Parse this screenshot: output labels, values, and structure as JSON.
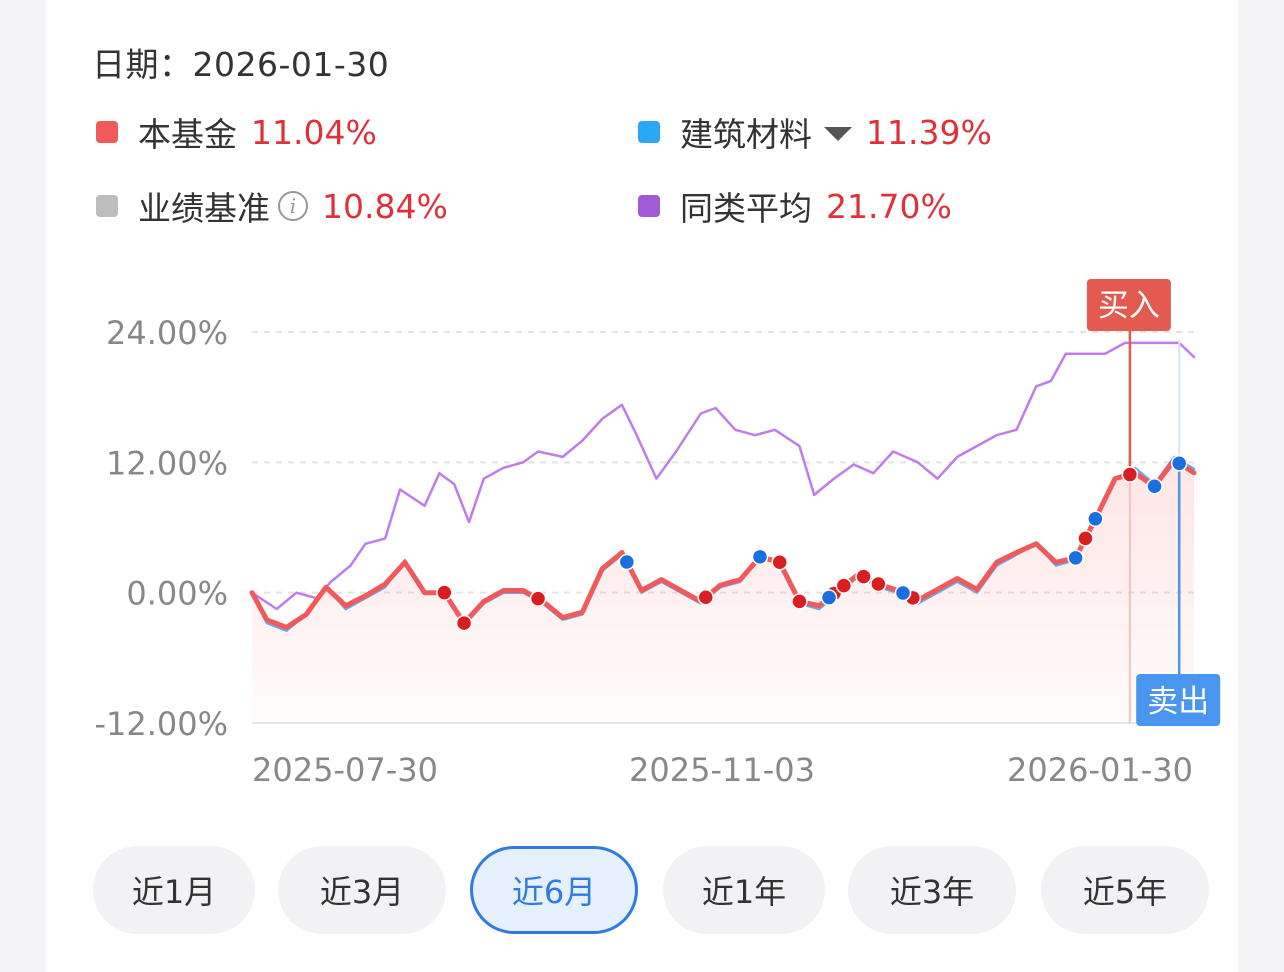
{
  "header": {
    "date_label": "日期：",
    "date_value": "2026-01-30"
  },
  "legend": [
    {
      "name": "本基金",
      "value": "11.04%",
      "color": "#f05a5a"
    },
    {
      "name": "建筑材料",
      "value": "11.39%",
      "color": "#2aa7f5",
      "has_dropdown": true
    },
    {
      "name": "业绩基准",
      "value": "10.84%",
      "color": "#bdbdbd",
      "has_info": true
    },
    {
      "name": "同类平均",
      "value": "21.70%",
      "color": "#a05cd6"
    }
  ],
  "chart_data": {
    "type": "line",
    "x_ticks": [
      "2025-07-30",
      "2025-11-03",
      "2026-01-30"
    ],
    "y_ticks": [
      "24.00%",
      "12.00%",
      "0.00%",
      "-12.00%"
    ],
    "ylim": [
      -12,
      24
    ],
    "grid": true,
    "x_range": [
      "2025-07-30",
      "2026-02-06"
    ],
    "series": [
      {
        "name": "同类平均",
        "color": "#c07de8",
        "points": [
          [
            "2025-07-30",
            0.0
          ],
          [
            "2025-08-04",
            -1.5
          ],
          [
            "2025-08-08",
            0.0
          ],
          [
            "2025-08-12",
            -0.5
          ],
          [
            "2025-08-15",
            1.0
          ],
          [
            "2025-08-19",
            2.5
          ],
          [
            "2025-08-22",
            4.5
          ],
          [
            "2025-08-26",
            5.0
          ],
          [
            "2025-08-29",
            9.5
          ],
          [
            "2025-09-03",
            8.0
          ],
          [
            "2025-09-06",
            11.0
          ],
          [
            "2025-09-09",
            10.0
          ],
          [
            "2025-09-12",
            6.5
          ],
          [
            "2025-09-15",
            10.5
          ],
          [
            "2025-09-19",
            11.5
          ],
          [
            "2025-09-23",
            12.0
          ],
          [
            "2025-09-26",
            13.0
          ],
          [
            "2025-10-01",
            12.5
          ],
          [
            "2025-10-05",
            14.0
          ],
          [
            "2025-10-09",
            16.0
          ],
          [
            "2025-10-13",
            17.3
          ],
          [
            "2025-10-16",
            14.5
          ],
          [
            "2025-10-20",
            10.5
          ],
          [
            "2025-10-24",
            13.0
          ],
          [
            "2025-10-29",
            16.5
          ],
          [
            "2025-11-01",
            17.0
          ],
          [
            "2025-11-05",
            15.0
          ],
          [
            "2025-11-09",
            14.5
          ],
          [
            "2025-11-13",
            15.0
          ],
          [
            "2025-11-18",
            13.5
          ],
          [
            "2025-11-21",
            9.0
          ],
          [
            "2025-11-25",
            10.5
          ],
          [
            "2025-11-29",
            11.8
          ],
          [
            "2025-12-03",
            11.0
          ],
          [
            "2025-12-07",
            13.0
          ],
          [
            "2025-12-12",
            12.0
          ],
          [
            "2025-12-16",
            10.5
          ],
          [
            "2025-12-20",
            12.5
          ],
          [
            "2025-12-24",
            13.5
          ],
          [
            "2025-12-28",
            14.5
          ],
          [
            "2026-01-01",
            15.0
          ],
          [
            "2026-01-05",
            19.0
          ],
          [
            "2026-01-08",
            19.5
          ],
          [
            "2026-01-11",
            22.0
          ],
          [
            "2026-01-15",
            22.0
          ],
          [
            "2026-01-19",
            22.0
          ],
          [
            "2026-01-23",
            23.0
          ],
          [
            "2026-01-27",
            23.0
          ],
          [
            "2026-01-31",
            23.0
          ],
          [
            "2026-02-03",
            23.0
          ],
          [
            "2026-02-06",
            21.7
          ]
        ]
      },
      {
        "name": "建筑材料",
        "color": "#6aa8e8",
        "points": [
          [
            "2025-07-30",
            0.0
          ],
          [
            "2025-08-02",
            -2.8
          ],
          [
            "2025-08-06",
            -3.5
          ],
          [
            "2025-08-10",
            -2.0
          ],
          [
            "2025-08-14",
            0.5
          ],
          [
            "2025-08-18",
            -1.5
          ],
          [
            "2025-08-22",
            -0.5
          ],
          [
            "2025-08-26",
            0.5
          ],
          [
            "2025-08-30",
            3.0
          ],
          [
            "2025-09-03",
            0.0
          ],
          [
            "2025-09-07",
            0.0
          ],
          [
            "2025-09-11",
            -3.0
          ],
          [
            "2025-09-15",
            -1.0
          ],
          [
            "2025-09-19",
            0.0
          ],
          [
            "2025-09-23",
            0.0
          ],
          [
            "2025-09-27",
            -1.0
          ],
          [
            "2025-10-01",
            -2.5
          ],
          [
            "2025-10-05",
            -2.0
          ],
          [
            "2025-10-09",
            2.0
          ],
          [
            "2025-10-13",
            3.5
          ],
          [
            "2025-10-17",
            0.0
          ],
          [
            "2025-10-21",
            1.0
          ],
          [
            "2025-10-25",
            0.0
          ],
          [
            "2025-10-29",
            -1.0
          ],
          [
            "2025-11-02",
            0.5
          ],
          [
            "2025-11-06",
            1.0
          ],
          [
            "2025-11-10",
            3.5
          ],
          [
            "2025-11-14",
            2.5
          ],
          [
            "2025-11-18",
            -1.0
          ],
          [
            "2025-11-22",
            -1.5
          ],
          [
            "2025-11-26",
            0.0
          ],
          [
            "2025-11-30",
            1.5
          ],
          [
            "2025-12-04",
            0.5
          ],
          [
            "2025-12-08",
            0.0
          ],
          [
            "2025-12-12",
            -1.0
          ],
          [
            "2025-12-16",
            0.0
          ],
          [
            "2025-12-20",
            1.0
          ],
          [
            "2025-12-24",
            0.0
          ],
          [
            "2025-12-28",
            2.5
          ],
          [
            "2026-01-01",
            3.5
          ],
          [
            "2026-01-05",
            4.5
          ],
          [
            "2026-01-09",
            2.5
          ],
          [
            "2026-01-13",
            3.0
          ],
          [
            "2026-01-17",
            6.5
          ],
          [
            "2026-01-21",
            10.5
          ],
          [
            "2026-01-25",
            11.5
          ],
          [
            "2026-01-29",
            10.0
          ],
          [
            "2026-02-02",
            12.5
          ],
          [
            "2026-02-06",
            11.39
          ]
        ]
      },
      {
        "name": "本基金",
        "color": "#f05a5a",
        "points": [
          [
            "2025-07-30",
            0.0
          ],
          [
            "2025-08-02",
            -2.5
          ],
          [
            "2025-08-06",
            -3.2
          ],
          [
            "2025-08-10",
            -2.0
          ],
          [
            "2025-08-14",
            0.5
          ],
          [
            "2025-08-18",
            -1.2
          ],
          [
            "2025-08-22",
            -0.3
          ],
          [
            "2025-08-26",
            0.8
          ],
          [
            "2025-08-30",
            2.8
          ],
          [
            "2025-09-03",
            0.0
          ],
          [
            "2025-09-07",
            0.0
          ],
          [
            "2025-09-11",
            -2.8
          ],
          [
            "2025-09-15",
            -0.8
          ],
          [
            "2025-09-19",
            0.2
          ],
          [
            "2025-09-23",
            0.2
          ],
          [
            "2025-09-27",
            -0.8
          ],
          [
            "2025-10-01",
            -2.3
          ],
          [
            "2025-10-05",
            -1.8
          ],
          [
            "2025-10-09",
            2.2
          ],
          [
            "2025-10-13",
            3.7
          ],
          [
            "2025-10-17",
            0.2
          ],
          [
            "2025-10-21",
            1.2
          ],
          [
            "2025-10-25",
            0.2
          ],
          [
            "2025-10-29",
            -0.8
          ],
          [
            "2025-11-02",
            0.7
          ],
          [
            "2025-11-06",
            1.2
          ],
          [
            "2025-11-10",
            3.3
          ],
          [
            "2025-11-14",
            2.8
          ],
          [
            "2025-11-18",
            -0.8
          ],
          [
            "2025-11-22",
            -1.2
          ],
          [
            "2025-11-26",
            0.3
          ],
          [
            "2025-11-30",
            1.7
          ],
          [
            "2025-12-04",
            0.8
          ],
          [
            "2025-12-08",
            0.2
          ],
          [
            "2025-12-12",
            -0.7
          ],
          [
            "2025-12-16",
            0.3
          ],
          [
            "2025-12-20",
            1.3
          ],
          [
            "2025-12-24",
            0.3
          ],
          [
            "2025-12-28",
            2.8
          ],
          [
            "2026-01-01",
            3.7
          ],
          [
            "2026-01-05",
            4.5
          ],
          [
            "2026-01-09",
            2.8
          ],
          [
            "2026-01-13",
            3.2
          ],
          [
            "2026-01-17",
            6.8
          ],
          [
            "2026-01-21",
            10.5
          ],
          [
            "2026-01-25",
            11.0
          ],
          [
            "2026-01-29",
            9.8
          ],
          [
            "2026-02-02",
            12.2
          ],
          [
            "2026-02-06",
            11.04
          ]
        ]
      }
    ],
    "buy_points": [
      "2025-09-07",
      "2025-09-11",
      "2025-09-26",
      "2025-10-30",
      "2025-11-14",
      "2025-11-18",
      "2025-11-25",
      "2025-11-27",
      "2025-12-01",
      "2025-12-04",
      "2025-12-11",
      "2026-01-15",
      "2026-01-24"
    ],
    "sell_points": [
      "2025-10-14",
      "2025-11-10",
      "2025-11-24",
      "2025-12-09",
      "2026-01-13",
      "2026-01-17",
      "2026-01-29",
      "2026-02-03"
    ],
    "markers": [
      {
        "label": "买入",
        "date": "2026-01-24",
        "color": "#e45a50"
      },
      {
        "label": "卖出",
        "date": "2026-02-03",
        "color": "#4a96ee"
      }
    ]
  },
  "ranges": [
    {
      "label": "近1月",
      "active": false
    },
    {
      "label": "近3月",
      "active": false
    },
    {
      "label": "近6月",
      "active": true
    },
    {
      "label": "近1年",
      "active": false
    },
    {
      "label": "近3年",
      "active": false
    },
    {
      "label": "近5年",
      "active": false
    }
  ]
}
